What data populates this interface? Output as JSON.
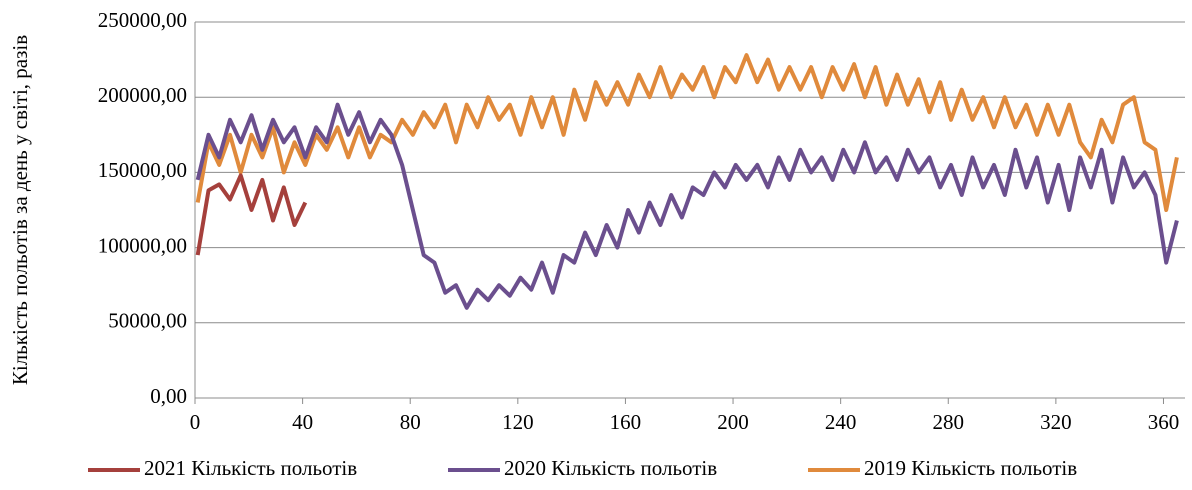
{
  "chart_data": {
    "type": "line",
    "y_label": "Кількість польотів за день у світі, разів",
    "xlim": [
      0,
      368
    ],
    "xticks": [
      0,
      40,
      80,
      120,
      160,
      200,
      240,
      280,
      320,
      360
    ],
    "ylim": [
      0,
      250000
    ],
    "yticks": [
      {
        "value": 0,
        "label": "0,00"
      },
      {
        "value": 50000,
        "label": "50000,00"
      },
      {
        "value": 100000,
        "label": "100000,00"
      },
      {
        "value": 150000,
        "label": "150000,00"
      },
      {
        "value": 200000,
        "label": "200000,00"
      },
      {
        "value": 250000,
        "label": "250000,00"
      }
    ],
    "grid": true,
    "legend": "bottom",
    "series": [
      {
        "name": "2021 Кількість польотів",
        "color": "#a5403c",
        "x": [
          1,
          5,
          9,
          13,
          17,
          21,
          25,
          29,
          33,
          37,
          41
        ],
        "values": [
          95000,
          138000,
          142000,
          132000,
          148000,
          125000,
          145000,
          118000,
          140000,
          115000,
          130000
        ]
      },
      {
        "name": "2020 Кількість польотів",
        "color": "#6b4f8e",
        "x": [
          1,
          5,
          9,
          13,
          17,
          21,
          25,
          29,
          33,
          37,
          41,
          45,
          49,
          53,
          57,
          61,
          65,
          69,
          73,
          77,
          81,
          85,
          89,
          93,
          97,
          101,
          105,
          109,
          113,
          117,
          121,
          125,
          129,
          133,
          137,
          141,
          145,
          149,
          153,
          157,
          161,
          165,
          169,
          173,
          177,
          181,
          185,
          189,
          193,
          197,
          201,
          205,
          209,
          213,
          217,
          221,
          225,
          229,
          233,
          237,
          241,
          245,
          249,
          253,
          257,
          261,
          265,
          269,
          273,
          277,
          281,
          285,
          289,
          293,
          297,
          301,
          305,
          309,
          313,
          317,
          321,
          325,
          329,
          333,
          337,
          341,
          345,
          349,
          353,
          357,
          361,
          365
        ],
        "values": [
          145000,
          175000,
          160000,
          185000,
          170000,
          188000,
          165000,
          185000,
          170000,
          180000,
          160000,
          180000,
          170000,
          195000,
          175000,
          190000,
          170000,
          185000,
          175000,
          155000,
          125000,
          95000,
          90000,
          70000,
          75000,
          60000,
          72000,
          65000,
          75000,
          68000,
          80000,
          72000,
          90000,
          70000,
          95000,
          90000,
          110000,
          95000,
          115000,
          100000,
          125000,
          110000,
          130000,
          115000,
          135000,
          120000,
          140000,
          135000,
          150000,
          140000,
          155000,
          145000,
          155000,
          140000,
          160000,
          145000,
          165000,
          150000,
          160000,
          145000,
          165000,
          150000,
          170000,
          150000,
          160000,
          145000,
          165000,
          150000,
          160000,
          140000,
          155000,
          135000,
          160000,
          140000,
          155000,
          135000,
          165000,
          140000,
          160000,
          130000,
          155000,
          125000,
          160000,
          140000,
          165000,
          130000,
          160000,
          140000,
          150000,
          135000,
          90000,
          118000
        ]
      },
      {
        "name": "2019 Кількість польотів",
        "color": "#e08a3c",
        "x": [
          1,
          5,
          9,
          13,
          17,
          21,
          25,
          29,
          33,
          37,
          41,
          45,
          49,
          53,
          57,
          61,
          65,
          69,
          73,
          77,
          81,
          85,
          89,
          93,
          97,
          101,
          105,
          109,
          113,
          117,
          121,
          125,
          129,
          133,
          137,
          141,
          145,
          149,
          153,
          157,
          161,
          165,
          169,
          173,
          177,
          181,
          185,
          189,
          193,
          197,
          201,
          205,
          209,
          213,
          217,
          221,
          225,
          229,
          233,
          237,
          241,
          245,
          249,
          253,
          257,
          261,
          265,
          269,
          273,
          277,
          281,
          285,
          289,
          293,
          297,
          301,
          305,
          309,
          313,
          317,
          321,
          325,
          329,
          333,
          337,
          341,
          345,
          349,
          353,
          357,
          361,
          365
        ],
        "values": [
          130000,
          170000,
          155000,
          175000,
          150000,
          175000,
          160000,
          180000,
          150000,
          170000,
          155000,
          175000,
          165000,
          180000,
          160000,
          180000,
          160000,
          175000,
          170000,
          185000,
          175000,
          190000,
          180000,
          195000,
          170000,
          195000,
          180000,
          200000,
          185000,
          195000,
          175000,
          200000,
          180000,
          200000,
          175000,
          205000,
          185000,
          210000,
          195000,
          210000,
          195000,
          215000,
          200000,
          220000,
          200000,
          215000,
          205000,
          220000,
          200000,
          220000,
          210000,
          228000,
          210000,
          225000,
          205000,
          220000,
          205000,
          220000,
          200000,
          220000,
          205000,
          222000,
          200000,
          220000,
          195000,
          215000,
          195000,
          212000,
          190000,
          210000,
          185000,
          205000,
          185000,
          200000,
          180000,
          200000,
          180000,
          195000,
          175000,
          195000,
          175000,
          195000,
          170000,
          160000,
          185000,
          170000,
          195000,
          200000,
          170000,
          165000,
          125000,
          160000
        ]
      }
    ]
  }
}
